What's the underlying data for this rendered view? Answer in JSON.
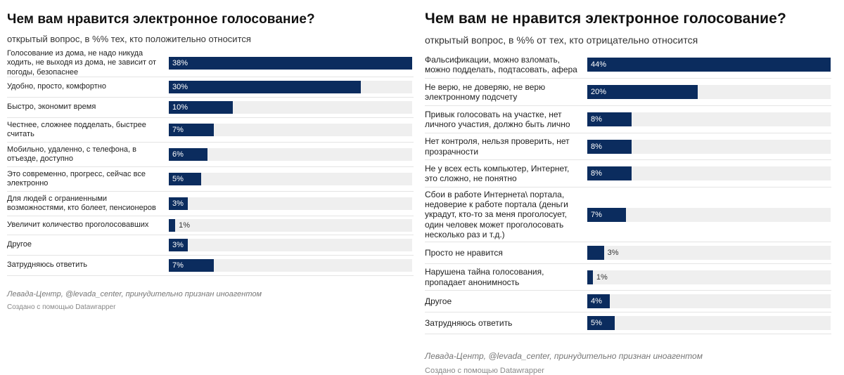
{
  "charts": [
    {
      "title": "Чем вам нравится электронное голосование?",
      "subtitle": "открытый вопрос, в %% тех, кто положительно относится",
      "source": "Левада-Центр, @levada_center, принудительно признан иноагентом",
      "credit": "Создано с помощью Datawrapper"
    },
    {
      "title": "Чем вам не нравится электронное голосование?",
      "subtitle": "открытый вопрос, в %% от тех, кто отрицательно относится",
      "source": "Левада-Центр, @levada_center, принудительно признан иноагентом",
      "credit": "Создано с помощью Datawrapper"
    }
  ],
  "colors": {
    "bar": "#0b2c5e",
    "track": "#efefef"
  },
  "chart_data": [
    {
      "type": "bar",
      "orientation": "horizontal",
      "title": "Чем вам нравится электронное голосование?",
      "subtitle": "открытый вопрос, в %% тех, кто положительно относится",
      "categories": [
        "Голосование из дома, не надо никуда ходить, не выходя из дома, не зависит от погоды, безопаснее",
        "Удобно, просто, комфортно",
        "Быстро, экономит время",
        "Честнее, сложнее подделать, быстрее считать",
        "Мобильно, удаленно, с телефона, в отъезде, доступно",
        "Это современно, прогресс, сейчас все электронно",
        "Для людей с ограниенными возможностями, кто болеет, пенсионеров",
        "Увеличит количество проголосовавших",
        "Другое",
        "Затрудняюсь ответить"
      ],
      "values": [
        38,
        30,
        10,
        7,
        6,
        5,
        3,
        1,
        3,
        7
      ],
      "value_labels": [
        "38%",
        "30%",
        "10%",
        "7%",
        "6%",
        "5%",
        "3%",
        "1%",
        "3%",
        "7%"
      ],
      "xlim": [
        0,
        38
      ]
    },
    {
      "type": "bar",
      "orientation": "horizontal",
      "title": "Чем вам не нравится электронное голосование?",
      "subtitle": "открытый вопрос, в %% от тех, кто отрицательно относится",
      "categories": [
        "Фальсификации, можно взломать, можно подделать, подтасовать, афера",
        "Не верю, не доверяю, не верю электронному подсчету",
        "Привык голосовать на участке, нет личного участия, должно быть лично",
        "Нет контроля, нельзя проверить, нет прозрачности",
        "Не у всех есть компьютер, Интернет, это сложно, не понятно",
        "Сбои в работе Интернета\\ портала, недоверие к работе портала (деньги украдут, кто-то за меня проголосует, один человек может проголосовать несколько раз и т.д.)",
        "Просто не нравится",
        "Нарушена тайна голосования, пропадает анонимность",
        "Другое",
        "Затрудняюсь ответить"
      ],
      "values": [
        44,
        20,
        8,
        8,
        8,
        7,
        3,
        1,
        4,
        5
      ],
      "value_labels": [
        "44%",
        "20%",
        "8%",
        "8%",
        "8%",
        "7%",
        "3%",
        "1%",
        "4%",
        "5%"
      ],
      "xlim": [
        0,
        44
      ]
    }
  ]
}
